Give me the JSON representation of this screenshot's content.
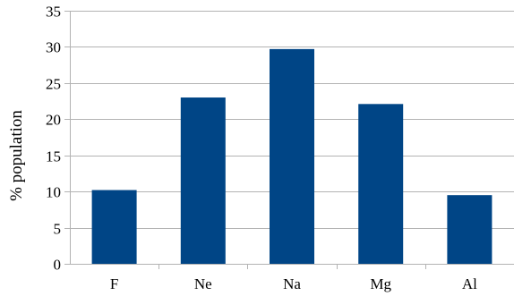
{
  "chart_data": {
    "type": "bar",
    "title": "",
    "xlabel": "",
    "ylabel": "% population",
    "categories": [
      "F",
      "Ne",
      "Na",
      "Mg",
      "Al"
    ],
    "values": [
      10.2,
      23.0,
      29.7,
      22.1,
      9.5
    ],
    "ylim": [
      0,
      35
    ],
    "yticks": [
      "0",
      "5",
      "10",
      "15",
      "20",
      "25",
      "30",
      "35"
    ],
    "grid": true,
    "legend": "none",
    "bar_color": "#004586",
    "grid_color": "#b3b3b3"
  }
}
